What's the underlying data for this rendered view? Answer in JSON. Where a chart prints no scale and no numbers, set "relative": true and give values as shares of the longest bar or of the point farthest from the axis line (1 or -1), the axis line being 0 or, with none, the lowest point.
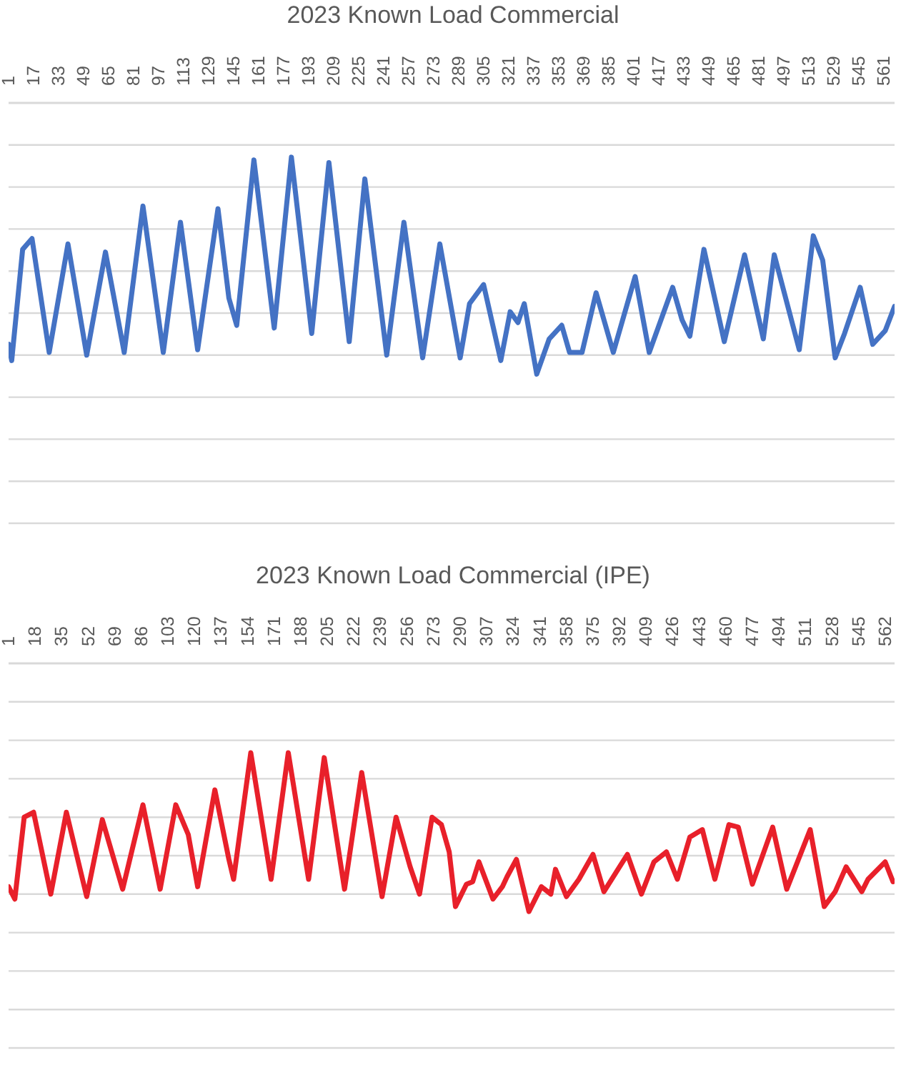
{
  "chart_data": [
    {
      "type": "line",
      "title": "2023 Known Load Commercial",
      "relative": true,
      "grid": "y",
      "xlim": [
        1,
        568
      ],
      "xticks": [
        1,
        17,
        33,
        49,
        65,
        81,
        97,
        113,
        129,
        145,
        161,
        177,
        193,
        209,
        225,
        241,
        257,
        273,
        289,
        305,
        321,
        337,
        353,
        369,
        385,
        401,
        417,
        433,
        449,
        465,
        481,
        497,
        513,
        529,
        545,
        561
      ],
      "x": [
        1,
        3,
        10,
        16,
        27,
        39,
        51,
        63,
        75,
        87,
        100,
        111,
        122,
        135,
        142,
        147,
        158,
        171,
        182,
        195,
        206,
        219,
        229,
        243,
        254,
        266,
        277,
        290,
        296,
        305,
        316,
        322,
        327,
        331,
        339,
        347,
        355,
        360,
        368,
        377,
        388,
        402,
        411,
        426,
        432,
        437,
        446,
        459,
        472,
        484,
        491,
        507,
        516,
        522,
        530,
        536,
        546,
        554,
        562,
        568
      ],
      "series": [
        {
          "color": "#4472c4",
          "values": [
            -0.89,
            -0.95,
            -0.54,
            -0.5,
            -0.92,
            -0.52,
            -0.93,
            -0.55,
            -0.92,
            -0.38,
            -0.92,
            -0.44,
            -0.91,
            -0.39,
            -0.72,
            -0.82,
            -0.21,
            -0.83,
            -0.2,
            -0.85,
            -0.22,
            -0.88,
            -0.28,
            -0.93,
            -0.44,
            -0.94,
            -0.52,
            -0.94,
            -0.74,
            -0.67,
            -0.95,
            -0.77,
            -0.81,
            -0.74,
            -1,
            -0.87,
            -0.82,
            -0.92,
            -0.92,
            -0.7,
            -0.92,
            -0.64,
            -0.92,
            -0.68,
            -0.8,
            -0.86,
            -0.54,
            -0.88,
            -0.56,
            -0.87,
            -0.56,
            -0.91,
            -0.49,
            -0.58,
            -0.94,
            -0.85,
            -0.68,
            -0.89,
            -0.84,
            -0.75
          ]
        }
      ]
    },
    {
      "type": "line",
      "title": "2023 Known Load Commercial (IPE)",
      "relative": true,
      "grid": "y",
      "xlim": [
        1,
        568
      ],
      "xticks": [
        1,
        18,
        35,
        52,
        69,
        86,
        103,
        120,
        137,
        154,
        171,
        188,
        205,
        222,
        239,
        256,
        273,
        290,
        307,
        324,
        341,
        358,
        375,
        392,
        409,
        426,
        443,
        460,
        477,
        494,
        511,
        528,
        545,
        562
      ],
      "x": [
        1,
        5,
        11,
        17,
        28,
        38,
        51,
        61,
        74,
        87,
        98,
        108,
        116,
        122,
        133,
        142,
        145,
        156,
        169,
        180,
        193,
        203,
        216,
        227,
        240,
        249,
        258,
        264,
        272,
        278,
        283,
        287,
        294,
        298,
        302,
        311,
        317,
        320,
        326,
        334,
        342,
        348,
        351,
        358,
        366,
        375,
        382,
        392,
        397,
        406,
        414,
        422,
        429,
        437,
        445,
        453,
        462,
        468,
        477,
        490,
        499,
        514,
        523,
        530,
        537,
        547,
        551,
        562,
        567
      ],
      "series": [
        {
          "color": "#e8202a",
          "values": [
            -0.9,
            -0.95,
            -0.62,
            -0.6,
            -0.93,
            -0.6,
            -0.94,
            -0.63,
            -0.91,
            -0.57,
            -0.91,
            -0.57,
            -0.69,
            -0.9,
            -0.51,
            -0.79,
            -0.87,
            -0.36,
            -0.87,
            -0.36,
            -0.87,
            -0.38,
            -0.91,
            -0.44,
            -0.94,
            -0.62,
            -0.82,
            -0.93,
            -0.62,
            -0.65,
            -0.76,
            -0.98,
            -0.89,
            -0.88,
            -0.8,
            -0.95,
            -0.9,
            -0.86,
            -0.79,
            -1,
            -0.9,
            -0.93,
            -0.83,
            -0.94,
            -0.87,
            -0.77,
            -0.92,
            -0.82,
            -0.77,
            -0.93,
            -0.8,
            -0.76,
            -0.87,
            -0.7,
            -0.67,
            -0.87,
            -0.65,
            -0.66,
            -0.89,
            -0.66,
            -0.91,
            -0.67,
            -0.98,
            -0.92,
            -0.82,
            -0.92,
            -0.87,
            -0.8,
            -0.88
          ]
        }
      ]
    }
  ]
}
